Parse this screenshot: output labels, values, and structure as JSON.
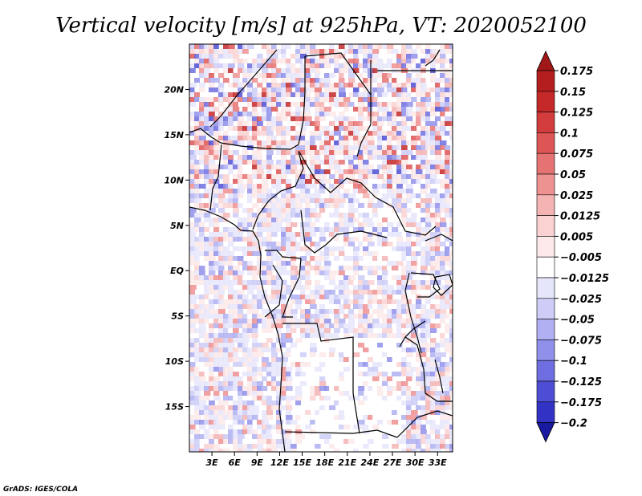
{
  "title": "Vertical velocity [m/s] at 925hPa, VT: 2020052100",
  "credit": "GrADS: IGES/COLA",
  "map": {
    "lon_range": [
      0,
      35
    ],
    "lat_range": [
      -20,
      25
    ],
    "lat_ticks": [
      {
        "value": 20,
        "label": "20N"
      },
      {
        "value": 15,
        "label": "15N"
      },
      {
        "value": 10,
        "label": "10N"
      },
      {
        "value": 5,
        "label": "5N"
      },
      {
        "value": 0,
        "label": "EQ"
      },
      {
        "value": -5,
        "label": "5S"
      },
      {
        "value": -10,
        "label": "10S"
      },
      {
        "value": -15,
        "label": "15S"
      }
    ],
    "lon_ticks": [
      {
        "value": 3,
        "label": "3E"
      },
      {
        "value": 6,
        "label": "6E"
      },
      {
        "value": 9,
        "label": "9E"
      },
      {
        "value": 12,
        "label": "12E"
      },
      {
        "value": 15,
        "label": "15E"
      },
      {
        "value": 18,
        "label": "18E"
      },
      {
        "value": 21,
        "label": "21E"
      },
      {
        "value": 24,
        "label": "24E"
      },
      {
        "value": 27,
        "label": "27E"
      },
      {
        "value": 30,
        "label": "30E"
      },
      {
        "value": 33,
        "label": "33E"
      }
    ]
  },
  "colorbar": {
    "levels": [
      {
        "label": "0.175",
        "color": "#b41e1e"
      },
      {
        "label": "0.15",
        "color": "#c42828"
      },
      {
        "label": "0.125",
        "color": "#d23c3c"
      },
      {
        "label": "0.1",
        "color": "#de5555"
      },
      {
        "label": "0.075",
        "color": "#e67373"
      },
      {
        "label": "0.05",
        "color": "#ee9191"
      },
      {
        "label": "0.025",
        "color": "#f5b4b4"
      },
      {
        "label": "0.0125",
        "color": "#fad2d2"
      },
      {
        "label": "0.005",
        "color": "#fde9e9"
      },
      {
        "label": "−0.005",
        "color": "#ffffff"
      },
      {
        "label": "−0.0125",
        "color": "#e6e6fb"
      },
      {
        "label": "−0.025",
        "color": "#cdcdf7"
      },
      {
        "label": "−0.05",
        "color": "#b0b0f2"
      },
      {
        "label": "−0.075",
        "color": "#9090ea"
      },
      {
        "label": "−0.1",
        "color": "#6e6ee0"
      },
      {
        "label": "−0.125",
        "color": "#4e4ed4"
      },
      {
        "label": "−0.175",
        "color": "#3232c4"
      },
      {
        "label": "−0.2",
        "color": "#2020b0"
      }
    ],
    "top_triangle_color": "#a01818",
    "bottom_triangle_color": "#1a1aa0"
  }
}
